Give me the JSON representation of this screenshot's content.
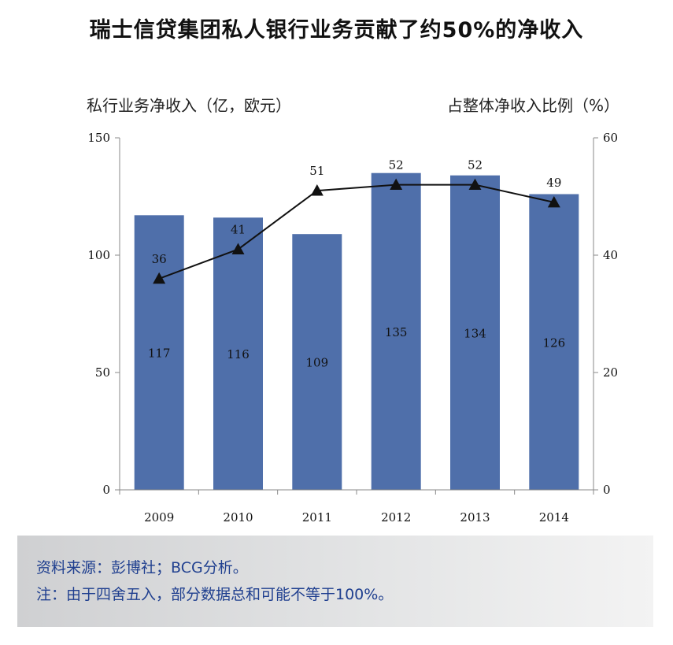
{
  "title": "瑞士信贷集团私人银行业务贡献了约50%的净收入",
  "footer": {
    "source": "资料来源：彭博社；BCG分析。",
    "note": "注：由于四舍五入，部分数据总和可能不等于100%。"
  },
  "chart_data": {
    "type": "bar",
    "categories": [
      "2009",
      "2010",
      "2011",
      "2012",
      "2013",
      "2014"
    ],
    "series": [
      {
        "type": "bar",
        "axis": "left",
        "values": [
          117,
          116,
          109,
          135,
          134,
          126
        ]
      },
      {
        "type": "line",
        "axis": "right",
        "values": [
          36,
          41,
          51,
          52,
          52,
          49
        ]
      }
    ],
    "ylabel_left": "私行业务净收入（亿，欧元）",
    "ylabel_right": "占整体净收入比例（%）",
    "ylim_left": [
      0,
      150
    ],
    "yticks_left": [
      0,
      50,
      100,
      150
    ],
    "ylim_right": [
      0,
      60
    ],
    "yticks_right": [
      0,
      20,
      40,
      60
    ],
    "grid": false,
    "colors": {
      "bar": "#4f6faa",
      "line": "#111111"
    }
  }
}
